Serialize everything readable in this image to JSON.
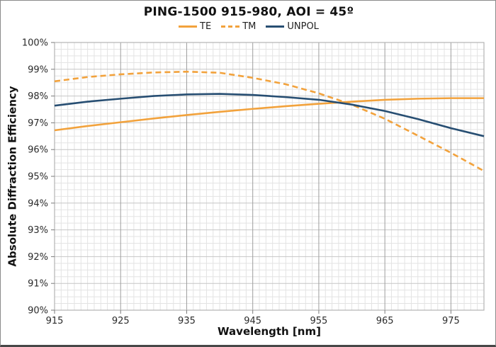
{
  "page": {
    "background": "#ffffff",
    "frame_color": "#8a8a8a"
  },
  "chart_data": {
    "type": "line",
    "title": "PING-1500 915-980, AOI = 45º",
    "xlabel": "Wavelength [nm]",
    "ylabel": "Absolute Diffraction Efficiency",
    "xlim": [
      915,
      980
    ],
    "ylim": [
      90,
      100
    ],
    "x_ticks": [
      915,
      925,
      935,
      945,
      955,
      965,
      975
    ],
    "y_ticks": [
      90,
      91,
      92,
      93,
      94,
      95,
      96,
      97,
      98,
      99,
      100
    ],
    "y_tick_suffix": "%",
    "legend_position": "top-center",
    "grid": {
      "minor_x_step": 1,
      "minor_y_step": 0.25,
      "minor_color": "#e3e3e3",
      "major_h_color": "#c6c6c6",
      "major_v_color": "#9e9e9e",
      "border_color": "#b3b3b3",
      "axis_tick_color": "#7a7a7a"
    },
    "x": [
      915,
      920,
      925,
      930,
      935,
      940,
      945,
      950,
      955,
      960,
      965,
      970,
      975,
      980
    ],
    "series": [
      {
        "name": "TE",
        "color": "#F2A23C",
        "dash": "solid",
        "values": [
          96.72,
          96.88,
          97.02,
          97.16,
          97.29,
          97.41,
          97.52,
          97.62,
          97.71,
          97.79,
          97.86,
          97.9,
          97.92,
          97.92
        ]
      },
      {
        "name": "TM",
        "color": "#F2A23C",
        "dash": "dashed",
        "values": [
          98.55,
          98.71,
          98.81,
          98.88,
          98.91,
          98.87,
          98.68,
          98.44,
          98.1,
          97.68,
          97.15,
          96.52,
          95.88,
          95.2
        ]
      },
      {
        "name": "UNPOL",
        "color": "#274E72",
        "dash": "solid",
        "values": [
          97.64,
          97.79,
          97.9,
          98.0,
          98.06,
          98.08,
          98.04,
          97.96,
          97.86,
          97.68,
          97.44,
          97.14,
          96.8,
          96.5
        ]
      }
    ]
  }
}
